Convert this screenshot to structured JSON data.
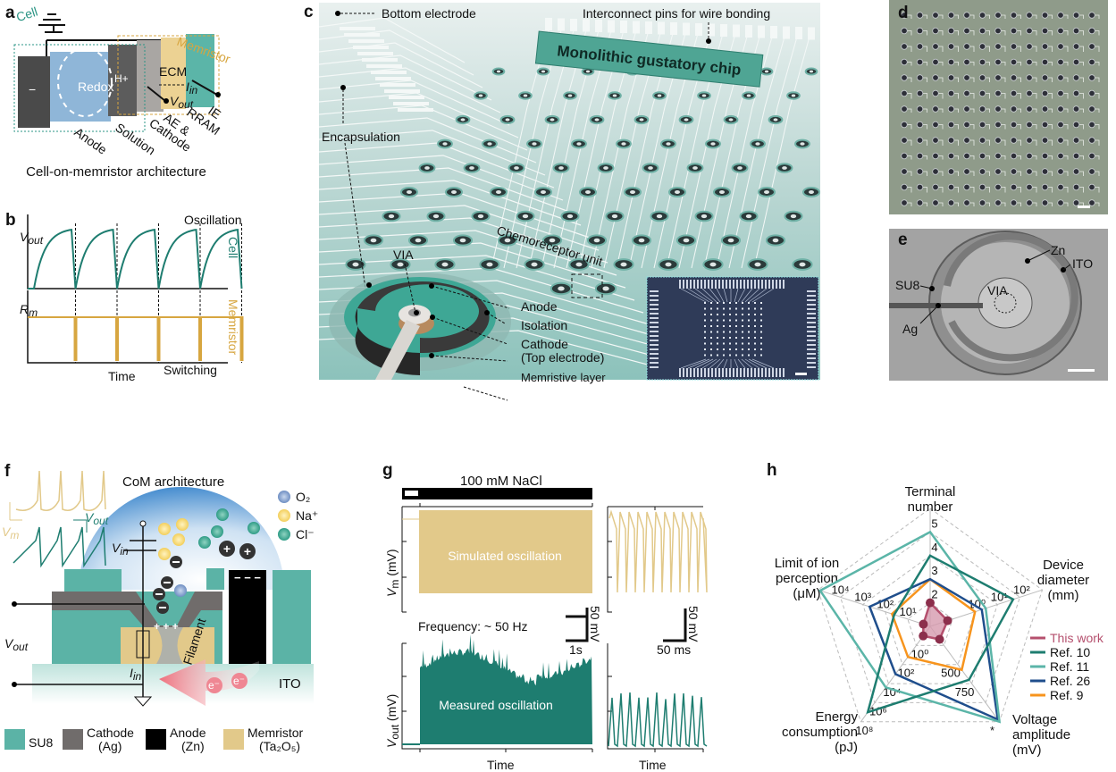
{
  "colors": {
    "teal_dark": "#1e7d70",
    "teal_light": "#5bb5a8",
    "blue": "#1f4e8c",
    "orange": "#f7941d",
    "this_work": "#b5506e",
    "gold": "#e2c98a",
    "cell_green": "#2a9484",
    "memristor_gold": "#d7a640"
  },
  "a": {
    "label": "a",
    "cell": "Cell",
    "memristor": "Memristor",
    "minus": "−",
    "redox": "Redox",
    "hplus": "H+",
    "ecm": "ECM",
    "i_main": "I",
    "i_sub": "in",
    "v_main": "V",
    "v_sub": "out",
    "anode": "Anode",
    "solution": "Solution",
    "ae": "AE &",
    "cathode": "Cathode",
    "rram": "RRAM",
    "ie": "IE",
    "caption": "Cell-on-memristor architecture"
  },
  "b": {
    "label": "b",
    "v_main": "V",
    "v_sub": "out",
    "oscillation": "Oscillation",
    "cell": "Cell",
    "r_main": "R",
    "r_sub": "m",
    "memristor": "Memristor",
    "time": "Time",
    "switching": "Switching"
  },
  "c": {
    "label": "c",
    "bottom_electrode_top": "Bottom electrode",
    "interconnect": "Interconnect pins for wire bonding",
    "chip_title": "Monolithic gustatory chip",
    "encapsulation": "Encapsulation",
    "via": "VIA",
    "chemoreceptor": "Chemoreceptor unit",
    "anode": "Anode",
    "isolation": "Isolation",
    "cathode": "Cathode",
    "top_electrode": "(Top electrode)",
    "memristive": "Memristive layer",
    "bottom_electrode": "Bottom electrode"
  },
  "d": {
    "label": "d"
  },
  "e": {
    "label": "e",
    "su8": "SU8",
    "zn": "Zn",
    "ito": "ITO",
    "via": "VIA",
    "ag": "Ag"
  },
  "f": {
    "label": "f",
    "title": "CoM architecture",
    "o2": "O₂",
    "na": "Na⁺",
    "cl": "Cl⁻",
    "vout_main": "V",
    "vout_sub": "out",
    "vm_main": "V",
    "vm_sub": "m",
    "vin_main": "V",
    "vin_sub": "in",
    "iin_main": "I",
    "iin_sub": "in",
    "filament": "Filament",
    "ito": "ITO",
    "electron": "e⁻",
    "plus3": "+ + +",
    "minus3": "− − −",
    "legend": [
      {
        "name": "SU8",
        "sub": "",
        "color": "#5bb3a6"
      },
      {
        "name": "Cathode",
        "sub": "(Ag)",
        "color": "#706c6b"
      },
      {
        "name": "Anode",
        "sub": "(Zn)",
        "color": "#000000"
      },
      {
        "name": "Memristor",
        "sub": "(Ta₂O₅)",
        "color": "#e2c98a"
      }
    ]
  },
  "g": {
    "label": "g",
    "stimulus": "100 mM NaCl",
    "vm_main": "V",
    "vm_sub": "m",
    "unit": " (mV)",
    "vout_main": "V",
    "vout_sub": "out",
    "simulated": "Simulated oscillation",
    "measured": "Measured oscillation",
    "frequency": "Frequency: ~ 50 Hz",
    "scale_mv": "50 mV",
    "scale_s": "1s",
    "scale_ms": "50 ms",
    "time": "Time"
  },
  "chart_data": {
    "type": "radar",
    "panel_label": "h",
    "axes": [
      {
        "name": [
          "Terminal",
          "number"
        ],
        "scale": "linear",
        "ticks": [
          "2",
          "3",
          "4",
          "5"
        ]
      },
      {
        "name": [
          "Device",
          "diameter",
          "(mm)"
        ],
        "scale": "log",
        "ticks": [
          "10⁰",
          "10¹",
          "10²"
        ]
      },
      {
        "name": [
          "Voltage",
          "amplitude",
          "(mV)"
        ],
        "scale": "linear",
        "ticks": [
          "500",
          "750",
          "*"
        ]
      },
      {
        "name": [
          "Energy",
          "consumption",
          "(pJ)"
        ],
        "scale": "log",
        "ticks": [
          "10⁰",
          "10²",
          "10⁴",
          "10⁶",
          "10⁸"
        ]
      },
      {
        "name": [
          "Limit of ion",
          "perception",
          "(μM)"
        ],
        "scale": "log",
        "ticks": [
          "10¹",
          "10²",
          "10³",
          "10⁴"
        ]
      }
    ],
    "series": [
      {
        "name": "This work",
        "color": "#b5506e",
        "values": [
          2,
          0.06,
          170,
          0.1,
          2
        ]
      },
      {
        "name": "Ref. 10",
        "color": "#1e7d70",
        "values": [
          4,
          50,
          700,
          10000000,
          40
        ]
      },
      {
        "name": "Ref. 11",
        "color": "#5bb5a8",
        "values": [
          5,
          3,
          1250,
          25000,
          80000
        ]
      },
      {
        "name": "Ref. 26",
        "color": "#1f4e8c",
        "values": [
          3,
          2,
          1220,
          1000,
          500
        ]
      },
      {
        "name": "Ref. 9",
        "color": "#f7941d",
        "values": [
          3,
          1,
          570,
          16,
          50
        ]
      }
    ],
    "grid": "dashed pentagons",
    "legend_position": "right"
  }
}
